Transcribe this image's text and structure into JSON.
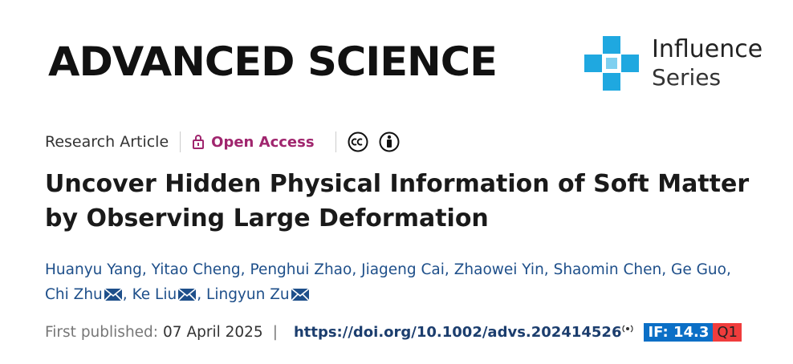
{
  "header": {
    "journal": "ADVANCED SCIENCE",
    "series_top": "Influence",
    "series_bottom": "Series"
  },
  "article": {
    "type": "Research Article",
    "access": "Open Access",
    "title": "Uncover Hidden Physical Information of Soft Matter by Observing Large Deformation",
    "author_separator": ",",
    "authors": [
      {
        "name": "Huanyu Yang",
        "corresponding": false
      },
      {
        "name": "Yitao Cheng",
        "corresponding": false
      },
      {
        "name": "Penghui Zhao",
        "corresponding": false
      },
      {
        "name": "Jiageng Cai",
        "corresponding": false
      },
      {
        "name": "Zhaowei Yin",
        "corresponding": false
      },
      {
        "name": "Shaomin Chen",
        "corresponding": false
      },
      {
        "name": "Ge Guo",
        "corresponding": false
      },
      {
        "name": "Chi Zhu",
        "corresponding": true
      },
      {
        "name": "Ke Liu",
        "corresponding": true
      },
      {
        "name": "Lingyun Zu",
        "corresponding": true
      }
    ],
    "published_label": "First published:",
    "published_date": "07 April 2025",
    "divider": "|",
    "doi": "https://doi.org/10.1002/advs.202414526",
    "impact_factor": "IF: 14.3",
    "quartile": "Q1"
  }
}
